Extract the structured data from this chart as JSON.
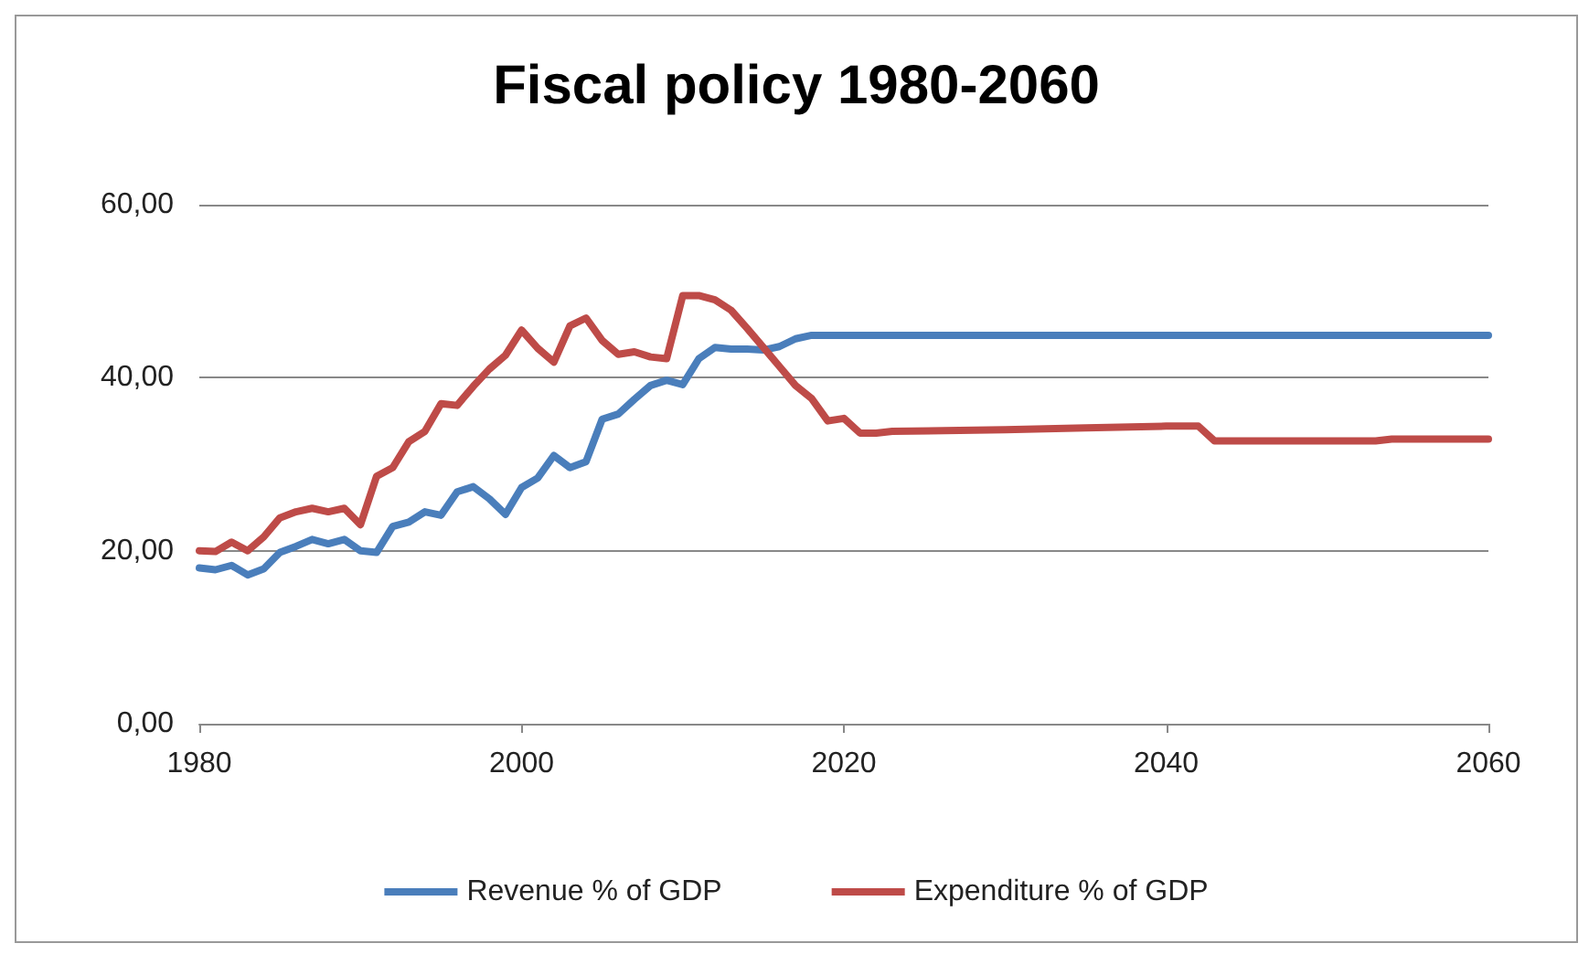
{
  "chart_data": {
    "type": "line",
    "title": "Fiscal policy 1980-2060",
    "xlim": [
      1980,
      2060
    ],
    "xticks": [
      1980,
      2000,
      2020,
      2040,
      2060
    ],
    "ylim": [
      0,
      60
    ],
    "yticks": [
      {
        "value": 0,
        "label": "0,00"
      },
      {
        "value": 20,
        "label": "20,00"
      },
      {
        "value": 40,
        "label": "40,00"
      },
      {
        "value": 60,
        "label": "60,00"
      }
    ],
    "grid": "y",
    "legend": "bottom",
    "marker": "none",
    "line_style": "solid",
    "series": [
      {
        "name": "Revenue % of GDP",
        "color": "#4a7ebb",
        "x": [
          1980,
          1981,
          1982,
          1983,
          1984,
          1985,
          1986,
          1987,
          1988,
          1989,
          1990,
          1991,
          1992,
          1993,
          1994,
          1995,
          1996,
          1997,
          1998,
          1999,
          2000,
          2001,
          2002,
          2003,
          2004,
          2005,
          2006,
          2007,
          2008,
          2009,
          2010,
          2011,
          2012,
          2013,
          2014,
          2015,
          2016,
          2017,
          2018,
          2060
        ],
        "values": [
          18,
          17.8,
          18.3,
          17.2,
          17.9,
          19.8,
          20.5,
          21.3,
          20.8,
          21.3,
          20,
          19.8,
          22.8,
          23.3,
          24.5,
          24.1,
          26.8,
          27.4,
          26,
          24.2,
          27.3,
          28.4,
          31,
          29.6,
          30.3,
          35.2,
          35.8,
          37.5,
          39.1,
          39.7,
          39.2,
          42.2,
          43.5,
          43.3,
          43.3,
          43.2,
          43.6,
          44.5,
          44.9,
          44.9
        ]
      },
      {
        "name": "Expenditure % of GDP",
        "color": "#be4b48",
        "x": [
          1980,
          1981,
          1982,
          1983,
          1984,
          1985,
          1986,
          1987,
          1988,
          1989,
          1990,
          1991,
          1992,
          1993,
          1994,
          1995,
          1996,
          1997,
          1998,
          1999,
          2000,
          2001,
          2002,
          2003,
          2004,
          2005,
          2006,
          2007,
          2008,
          2009,
          2010,
          2011,
          2012,
          2013,
          2014,
          2015,
          2016,
          2017,
          2018,
          2019,
          2020,
          2021,
          2022,
          2023,
          2030,
          2035,
          2040,
          2042,
          2043,
          2053,
          2054,
          2060
        ],
        "values": [
          20,
          19.9,
          21,
          20,
          21.6,
          23.8,
          24.5,
          24.9,
          24.5,
          24.9,
          23,
          28.6,
          29.6,
          32.6,
          33.8,
          37,
          36.8,
          39,
          41,
          42.6,
          45.5,
          43.4,
          41.8,
          46,
          46.9,
          44.3,
          42.7,
          43,
          42.4,
          42.2,
          49.5,
          49.5,
          49,
          47.8,
          45.7,
          43.5,
          41.3,
          39.1,
          37.6,
          35,
          35.3,
          33.6,
          33.6,
          33.8,
          34,
          34.2,
          34.4,
          34.4,
          32.7,
          32.7,
          32.9,
          32.9
        ]
      }
    ]
  }
}
